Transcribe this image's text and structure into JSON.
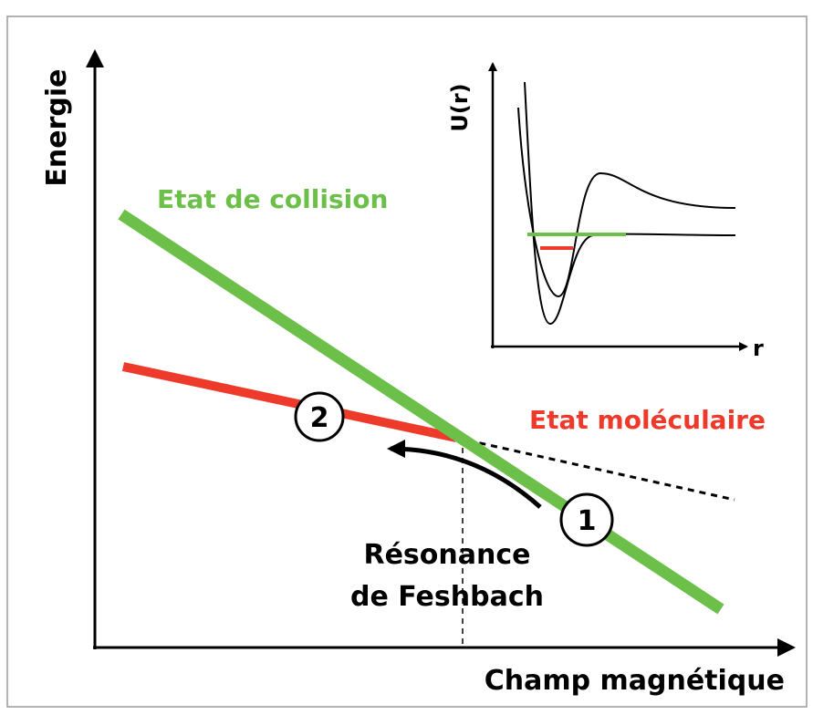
{
  "axes": {
    "y_label": "Energie",
    "x_label": "Champ magnétique"
  },
  "states": [
    {
      "label": "Etat de collision",
      "color": "#6cc04a"
    },
    {
      "label": "Etat moléculaire",
      "color": "#ee3a2a"
    }
  ],
  "resonance": {
    "lines": [
      "Résonance",
      "de Feshbach"
    ]
  },
  "markers": [
    "1",
    "2"
  ],
  "inset": {
    "y_label": "U(r)",
    "x_label": "r"
  }
}
